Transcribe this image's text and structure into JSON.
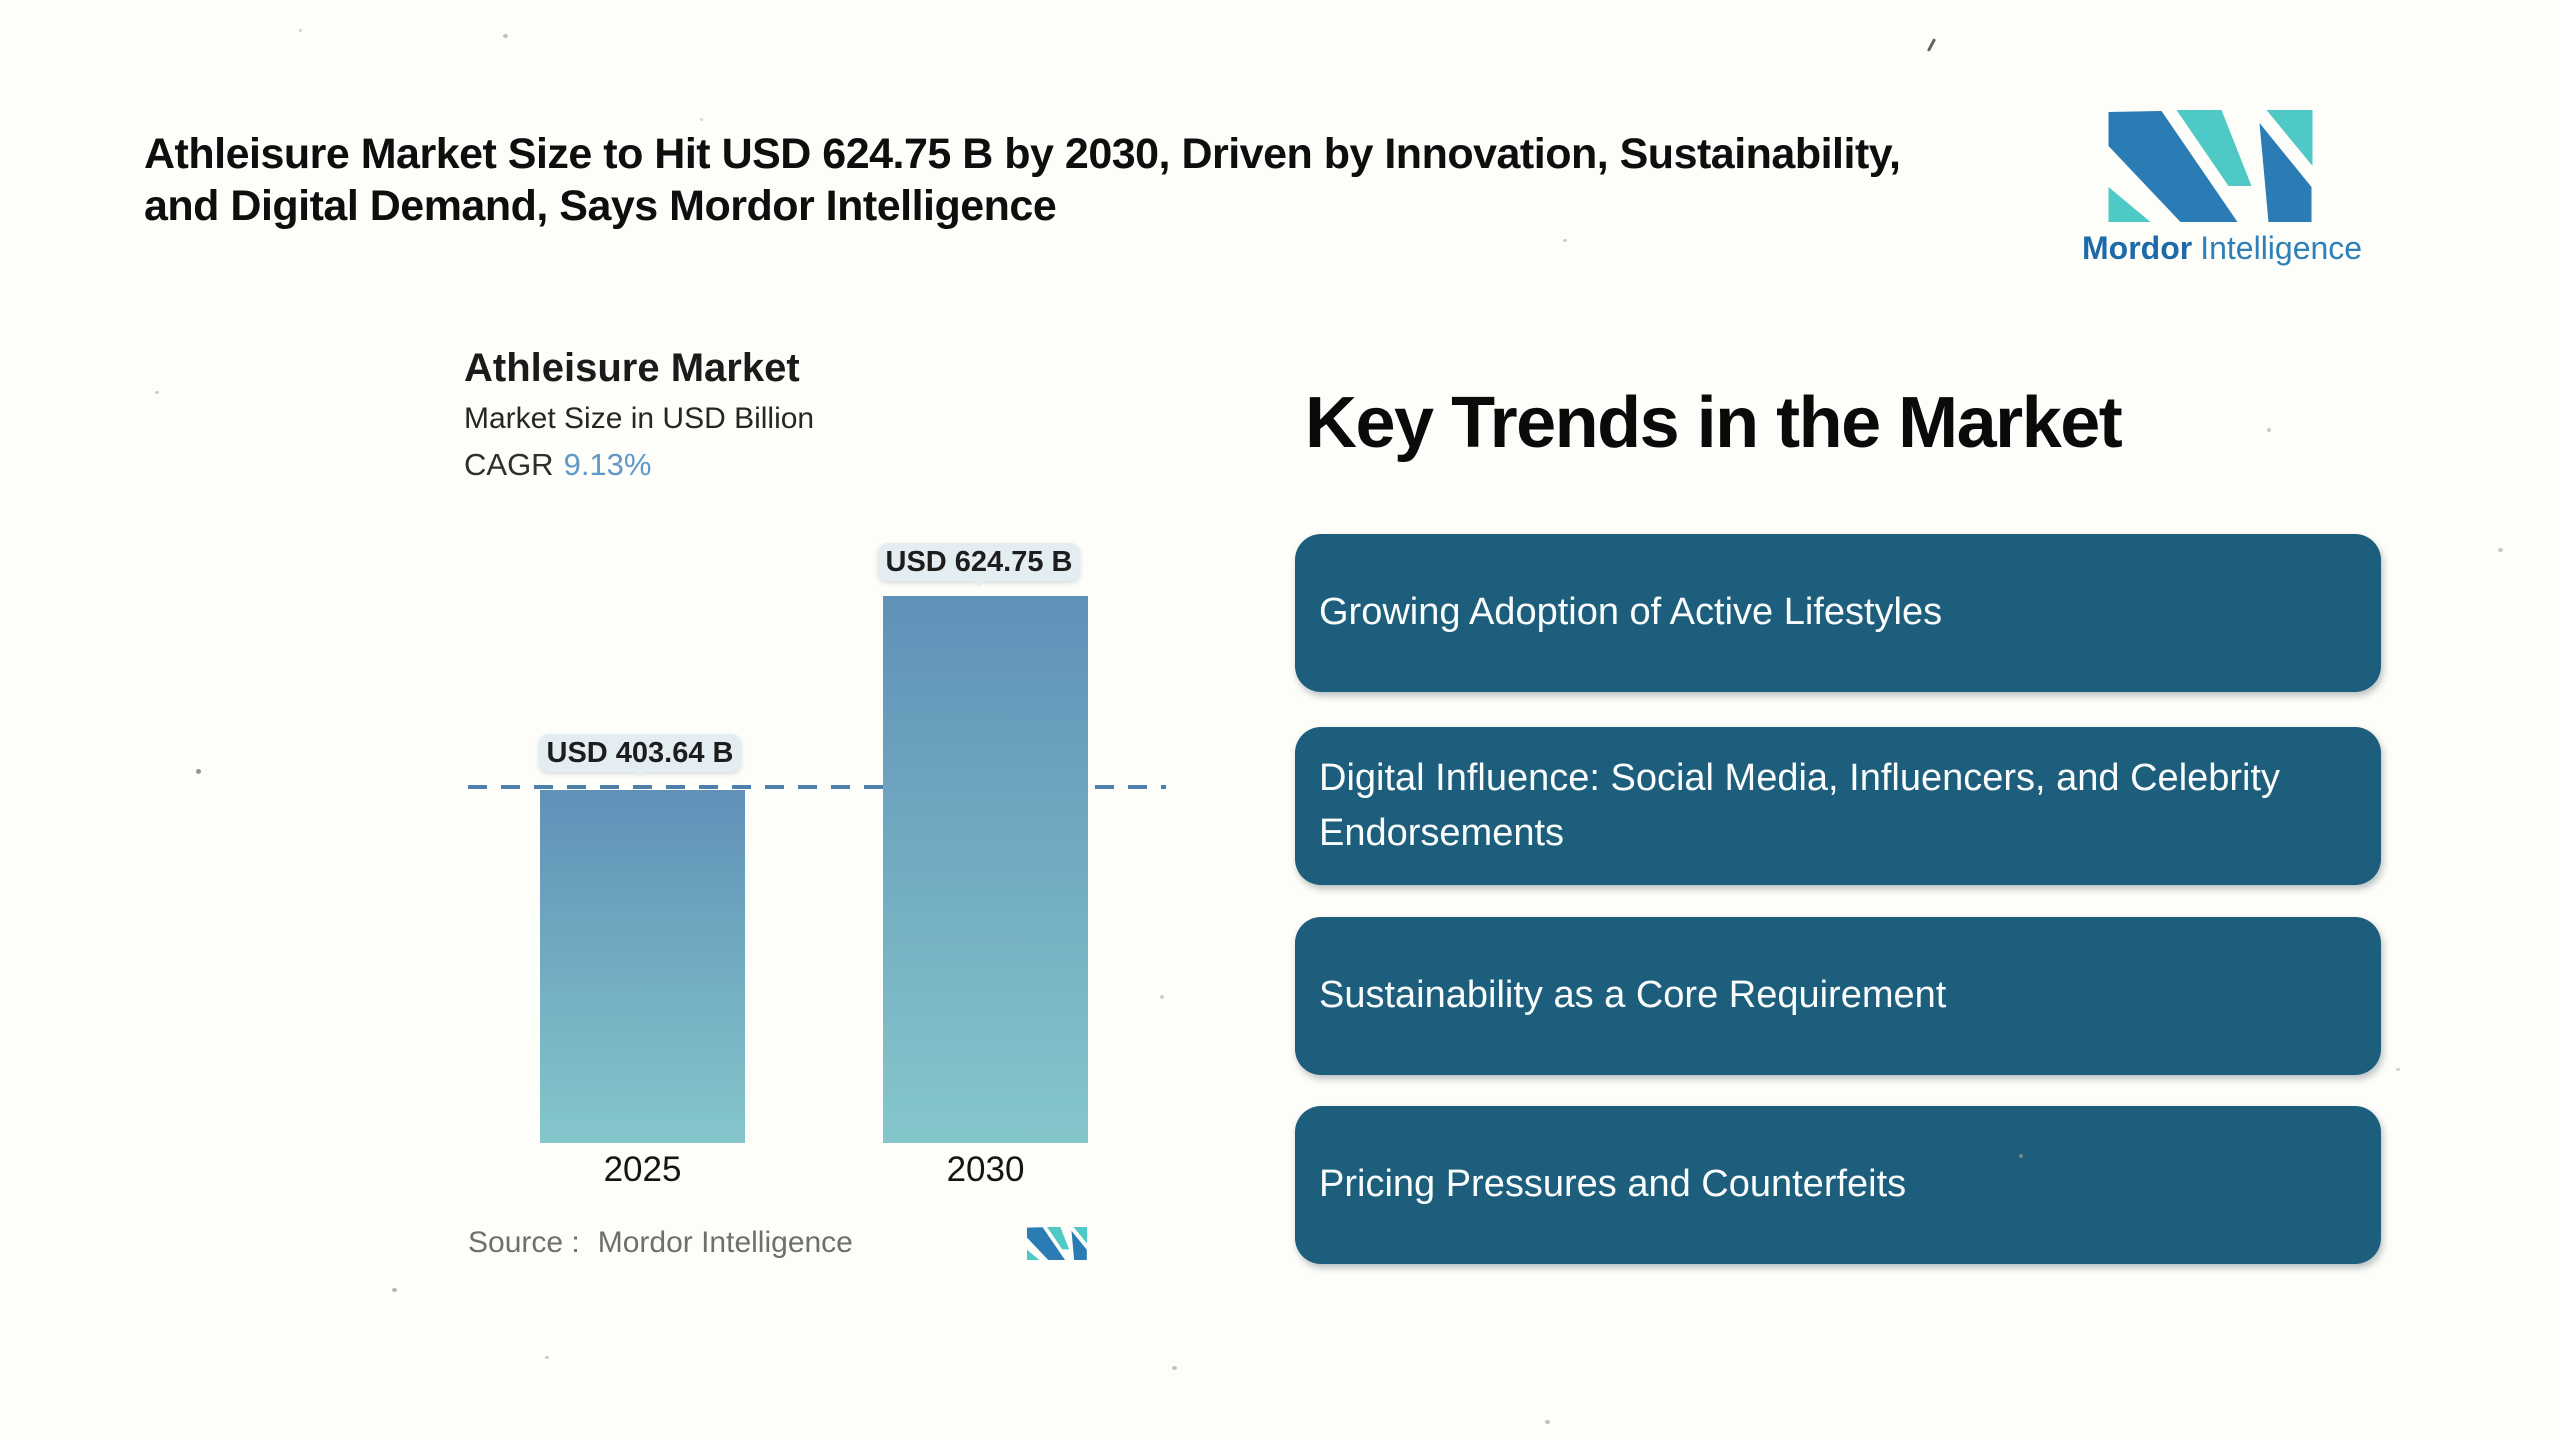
{
  "page_title": "Athleisure Market Size to Hit USD 624.75 B by 2030, Driven by Innovation, Sustainability,\nand Digital Demand, Says Mordor Intelligence",
  "brand": {
    "name_bold": "Mordor",
    "name_light": "Intelligence"
  },
  "chart_data": {
    "type": "bar",
    "title": "Athleisure Market",
    "subtitle": "Market Size in USD Billion",
    "cagr_label": "CAGR",
    "cagr_value": "9.13%",
    "categories": [
      "2025",
      "2030"
    ],
    "values": [
      403.64,
      624.75
    ],
    "value_labels": [
      "USD 403.64 B",
      "USD 624.75 B"
    ],
    "unit": "USD Billion",
    "ylim": [
      0,
      650
    ],
    "grid": false,
    "legend": "none",
    "reference_line_value": 403.64,
    "bar_gradient_top": "#6091b8",
    "bar_gradient_bottom": "#85c6cb"
  },
  "source": {
    "label": "Source :",
    "value": "Mordor Intelligence"
  },
  "key_trends": {
    "heading": "Key Trends in the Market",
    "items": [
      "Growing Adoption of Active Lifestyles",
      "Digital Influence: Social Media, Influencers, and Celebrity Endorsements",
      "Sustainability as a Core Requirement",
      "Pricing Pressures and Counterfeits"
    ]
  },
  "colors": {
    "logo_blue": "#2b7cb4",
    "logo_teal": "#4fc9c6",
    "card_background": "#1d5e7d",
    "card_text": "#fbfdfd",
    "cagr_accent": "#6098c8",
    "dashed_line": "#4d80aa",
    "callout_background": "#e4edf2",
    "page_background": "#fdfdf9"
  }
}
